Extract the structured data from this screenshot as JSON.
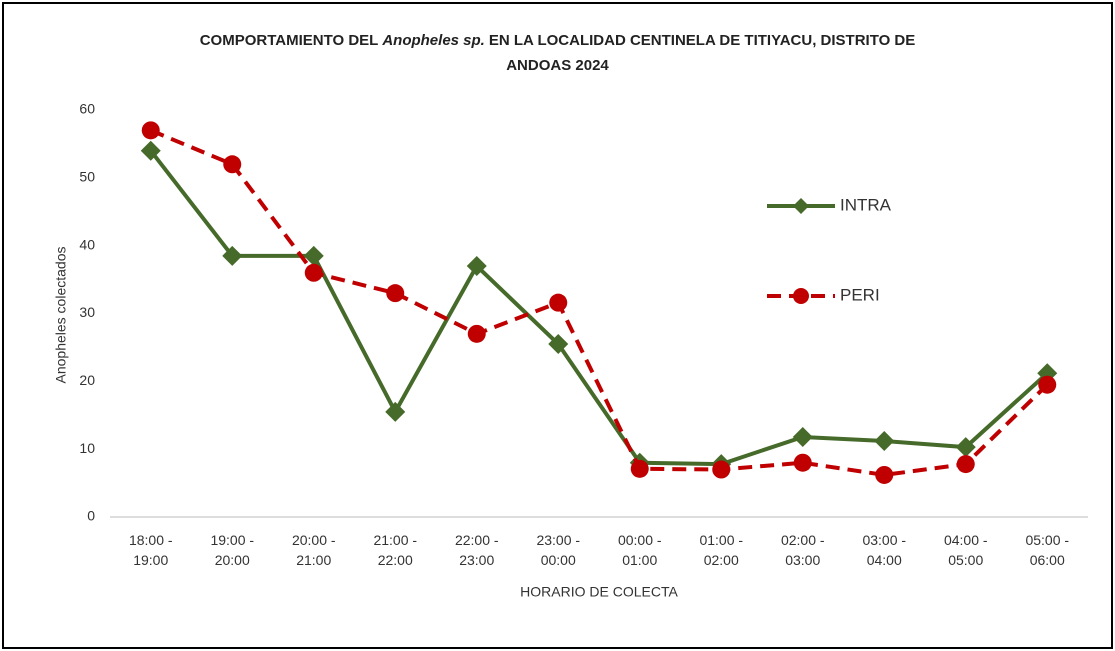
{
  "chart_data": {
    "type": "line",
    "title": [
      "COMPORTAMIENTO DEL",
      "Anopheles sp.",
      "EN LA LOCALIDAD CENTINELA DE TITIYACU, DISTRITO DE",
      "ANDOAS  2024"
    ],
    "x_label": "HORARIO DE COLECTA",
    "y_label": "Anopheles colectados",
    "categories": [
      "18:00 - 19:00",
      "19:00 - 20:00",
      "20:00 - 21:00",
      "21:00 - 22:00",
      "22:00 - 23:00",
      "23:00 - 00:00",
      "00:00 - 01:00",
      "01:00 - 02:00",
      "02:00 - 03:00",
      "03:00 - 04:00",
      "04:00 - 05:00",
      "05:00 - 06:00"
    ],
    "series": [
      {
        "name": "INTRA",
        "color": "#466a2a",
        "dashed": false,
        "marker": "diamond",
        "values": [
          54,
          38.5,
          38.5,
          15.5,
          37,
          25.5,
          8,
          7.8,
          11.8,
          11.2,
          10.3,
          21.2
        ]
      },
      {
        "name": "PERI",
        "color": "#c00000",
        "dashed": true,
        "marker": "circle",
        "values": [
          57,
          52,
          36,
          33,
          27,
          31.6,
          7.1,
          7,
          8,
          6.2,
          7.8,
          19.5
        ]
      }
    ],
    "ylim": [
      0,
      60
    ],
    "yticks": [
      0,
      10,
      20,
      30,
      40,
      50,
      60
    ],
    "grid": false,
    "legend": "right"
  }
}
